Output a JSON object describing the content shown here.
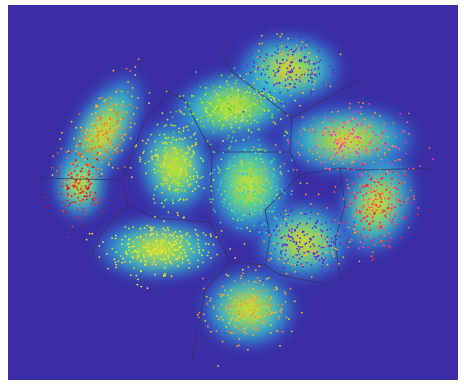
{
  "chart_data": {
    "type": "scatter",
    "title": "",
    "xlabel": "",
    "ylabel": "",
    "xlim": [
      0,
      1
    ],
    "ylim": [
      0,
      1
    ],
    "grid": false,
    "legend": "none",
    "background_color": "#3b2ea6",
    "density_colormap": [
      "#3b2ea6",
      "#2f7fe0",
      "#2fd3d0",
      "#8ee84b",
      "#f3e62b"
    ],
    "clusters": [
      {
        "id": "c0",
        "shape": "arc",
        "center": [
          0.21,
          0.66
        ],
        "spread": [
          0.028,
          0.075
        ],
        "angle": 150,
        "n": 260,
        "colors": [
          "#ff8c1a",
          "#ff6a1a",
          "#ffc21a"
        ]
      },
      {
        "id": "c1",
        "shape": "blob",
        "center": [
          0.16,
          0.52
        ],
        "spread": [
          0.025,
          0.04
        ],
        "angle": 0,
        "n": 150,
        "colors": [
          "#e8201a",
          "#c81a1a",
          "#ff4a1a"
        ]
      },
      {
        "id": "c2",
        "shape": "blob",
        "center": [
          0.335,
          0.35
        ],
        "spread": [
          0.06,
          0.035
        ],
        "angle": 0,
        "n": 260,
        "colors": [
          "#f2e82a",
          "#ffd21a",
          "#e0f02a"
        ]
      },
      {
        "id": "c3",
        "shape": "blob",
        "center": [
          0.37,
          0.57
        ],
        "spread": [
          0.035,
          0.055
        ],
        "angle": 10,
        "n": 260,
        "colors": [
          "#c8f02a",
          "#9ae82a",
          "#ffcc2a"
        ]
      },
      {
        "id": "c4",
        "shape": "blob",
        "center": [
          0.5,
          0.73
        ],
        "spread": [
          0.06,
          0.04
        ],
        "angle": 10,
        "n": 280,
        "colors": [
          "#7ae82a",
          "#c8f02a",
          "#4ad82a"
        ]
      },
      {
        "id": "c5",
        "shape": "blob",
        "center": [
          0.535,
          0.52
        ],
        "spread": [
          0.04,
          0.06
        ],
        "angle": 0,
        "n": 300,
        "colors": [
          "#2ae0a0",
          "#2ad0d8",
          "#9ae84a"
        ]
      },
      {
        "id": "c6",
        "shape": "blob",
        "center": [
          0.625,
          0.83
        ],
        "spread": [
          0.05,
          0.04
        ],
        "angle": 0,
        "n": 280,
        "colors": [
          "#2a3af0",
          "#ffb02a",
          "#6a2ad8"
        ]
      },
      {
        "id": "c7",
        "shape": "blob",
        "center": [
          0.755,
          0.64
        ],
        "spread": [
          0.065,
          0.04
        ],
        "angle": 0,
        "n": 300,
        "colors": [
          "#ff2ad8",
          "#ff6a6a",
          "#ffa02a"
        ]
      },
      {
        "id": "c8",
        "shape": "blob",
        "center": [
          0.82,
          0.47
        ],
        "spread": [
          0.035,
          0.06
        ],
        "angle": -20,
        "n": 300,
        "colors": [
          "#ff1a4a",
          "#ff4a7a",
          "#ff7a2a"
        ]
      },
      {
        "id": "c9",
        "shape": "blob",
        "center": [
          0.655,
          0.37
        ],
        "spread": [
          0.045,
          0.045
        ],
        "angle": 0,
        "n": 300,
        "colors": [
          "#7a1ad8",
          "#ffb02a",
          "#3a3ae8"
        ]
      },
      {
        "id": "c10",
        "shape": "blob",
        "center": [
          0.535,
          0.19
        ],
        "spread": [
          0.045,
          0.045
        ],
        "angle": 0,
        "n": 220,
        "colors": [
          "#ffb02a",
          "#e0d02a",
          "#ff8c2a"
        ]
      }
    ]
  }
}
